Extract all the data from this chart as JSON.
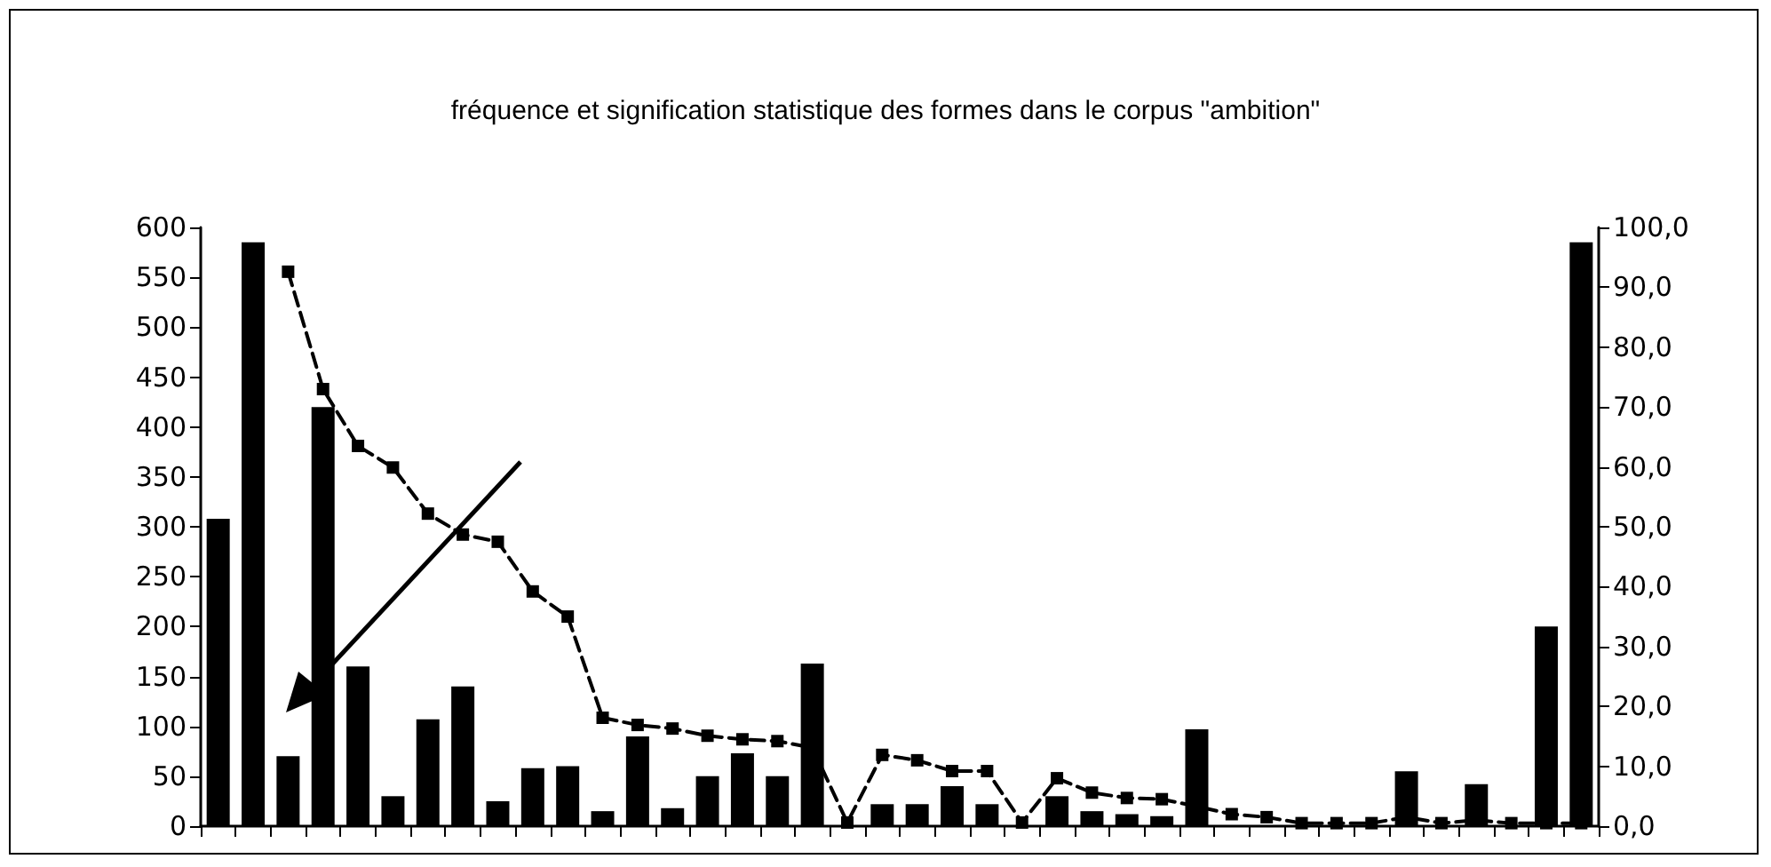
{
  "chart_data": {
    "type": "bar",
    "title": "fréquence et signification statistique des formes dans le corpus \"ambition\"",
    "categories": [
      null,
      null,
      null,
      null,
      null,
      null,
      null,
      null,
      null,
      null,
      null,
      null,
      null,
      null,
      null,
      null,
      null,
      null,
      null,
      null,
      null,
      null,
      null,
      null,
      null,
      null,
      null,
      null,
      null,
      null,
      null,
      null,
      null,
      null,
      null,
      null,
      null,
      null,
      null,
      null
    ],
    "series": [
      {
        "color": "#000000",
        "values": [
          308,
          585,
          70,
          420,
          160,
          30,
          107,
          140,
          25,
          58,
          60,
          15,
          90,
          18,
          50,
          73,
          50,
          163,
          0,
          22,
          22,
          40,
          22,
          0,
          30,
          15,
          12,
          10,
          97,
          0,
          0,
          0,
          0,
          0,
          55,
          0,
          42,
          0,
          200,
          585
        ]
      },
      {
        "type": "line",
        "axis": "y2",
        "color": "#000000",
        "marker": "square",
        "line_style": "dashed",
        "values": [
          null,
          null,
          92.6,
          73.0,
          63.5,
          59.9,
          52.2,
          48.7,
          47.5,
          39.2,
          35.0,
          18.1,
          16.9,
          16.3,
          15.1,
          14.5,
          14.2,
          13.1,
          0.6,
          11.9,
          11.0,
          9.2,
          9.2,
          0.6,
          8.0,
          5.6,
          4.7,
          4.5,
          3.3,
          2.0,
          1.5,
          0.5,
          0.5,
          0.5,
          1.5,
          0.5,
          1.0,
          0.5,
          0.5,
          0.5
        ]
      }
    ],
    "ylim": [
      0,
      600
    ],
    "yticks": [
      0,
      50,
      100,
      150,
      200,
      250,
      300,
      350,
      400,
      450,
      500,
      550,
      600
    ],
    "y2lim": [
      0,
      100
    ],
    "y2ticks": [
      {
        "value": 0,
        "label": "0,0"
      },
      {
        "value": 10,
        "label": "10,0"
      },
      {
        "value": 20,
        "label": "20,0"
      },
      {
        "value": 30,
        "label": "30,0"
      },
      {
        "value": 40,
        "label": "40,0"
      },
      {
        "value": 50,
        "label": "50,0"
      },
      {
        "value": 60,
        "label": "60,0"
      },
      {
        "value": 70,
        "label": "70,0"
      },
      {
        "value": 80,
        "label": "80,0"
      },
      {
        "value": 90,
        "label": "90,0"
      },
      {
        "value": 100,
        "label": "100,0"
      }
    ],
    "tick_labels": "y",
    "grid": false
  }
}
